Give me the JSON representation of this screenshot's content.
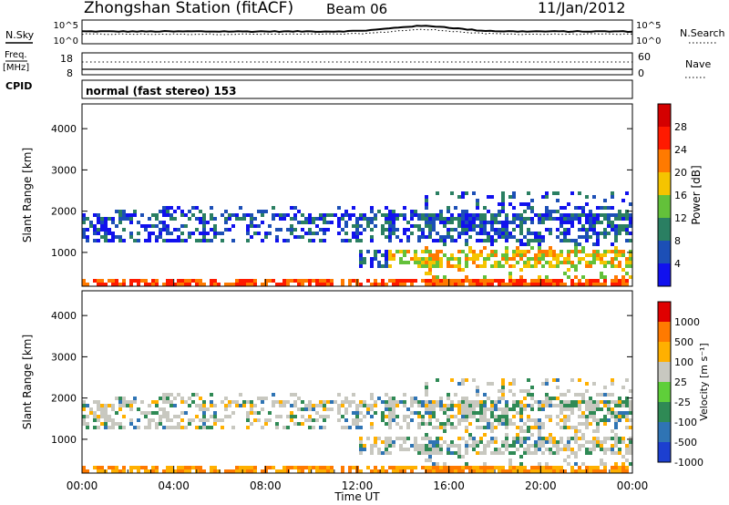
{
  "header": {
    "station": "Zhongshan Station (fitACF)",
    "beam": "Beam 06",
    "date": "11/Jan/2012"
  },
  "sky_panel": {
    "left_label": "N.Sky",
    "right_label": "N.Search",
    "ticks_left": [
      "10^5",
      "10^0"
    ],
    "ticks_right": [
      "10^5",
      "10^0"
    ]
  },
  "freq_panel": {
    "left_label_1": "Freq.",
    "left_label_2": "[MHz]",
    "right_label": "Nave",
    "ticks_left": [
      "18",
      "8"
    ],
    "ticks_right": [
      "60",
      "0"
    ]
  },
  "cpid": {
    "label": "CPID",
    "mode": "normal (fast stereo) 153"
  },
  "chart_data": [
    {
      "type": "heatmap",
      "title": "",
      "ylabel": "Slant Range [km]",
      "xlabel": "Time UT",
      "x": [
        "00:00",
        "04:00",
        "08:00",
        "12:00",
        "16:00",
        "20:00",
        "00:00"
      ],
      "yticks": [
        "1000",
        "2000",
        "3000",
        "4000"
      ],
      "ylim": [
        180,
        4600
      ],
      "colorbar": {
        "label": "Power [dB]",
        "ticks": [
          "4",
          "8",
          "12",
          "16",
          "20",
          "24",
          "28"
        ],
        "colors": [
          "#1111ee",
          "#1c4fb6",
          "#2a7f62",
          "#63c13a",
          "#f5c400",
          "#ff7a00",
          "#ff1a00",
          "#d40000"
        ]
      }
    },
    {
      "type": "heatmap",
      "title": "",
      "ylabel": "Slant Range [km]",
      "xlabel": "Time UT",
      "x": [
        "00:00",
        "04:00",
        "08:00",
        "12:00",
        "16:00",
        "20:00",
        "00:00"
      ],
      "yticks": [
        "1000",
        "2000",
        "3000",
        "4000"
      ],
      "ylim": [
        180,
        4600
      ],
      "colorbar": {
        "label": "Velocity [m s⁻¹]",
        "ticks": [
          "1000",
          "500",
          "100",
          "25",
          "-25",
          "-100",
          "-500",
          "-1000"
        ],
        "colors": [
          "#1c3fd0",
          "#2f74b4",
          "#2f8a55",
          "#5fcf3a",
          "#c8c8c0",
          "#ffb000",
          "#ff7a00",
          "#e00000"
        ]
      }
    }
  ]
}
